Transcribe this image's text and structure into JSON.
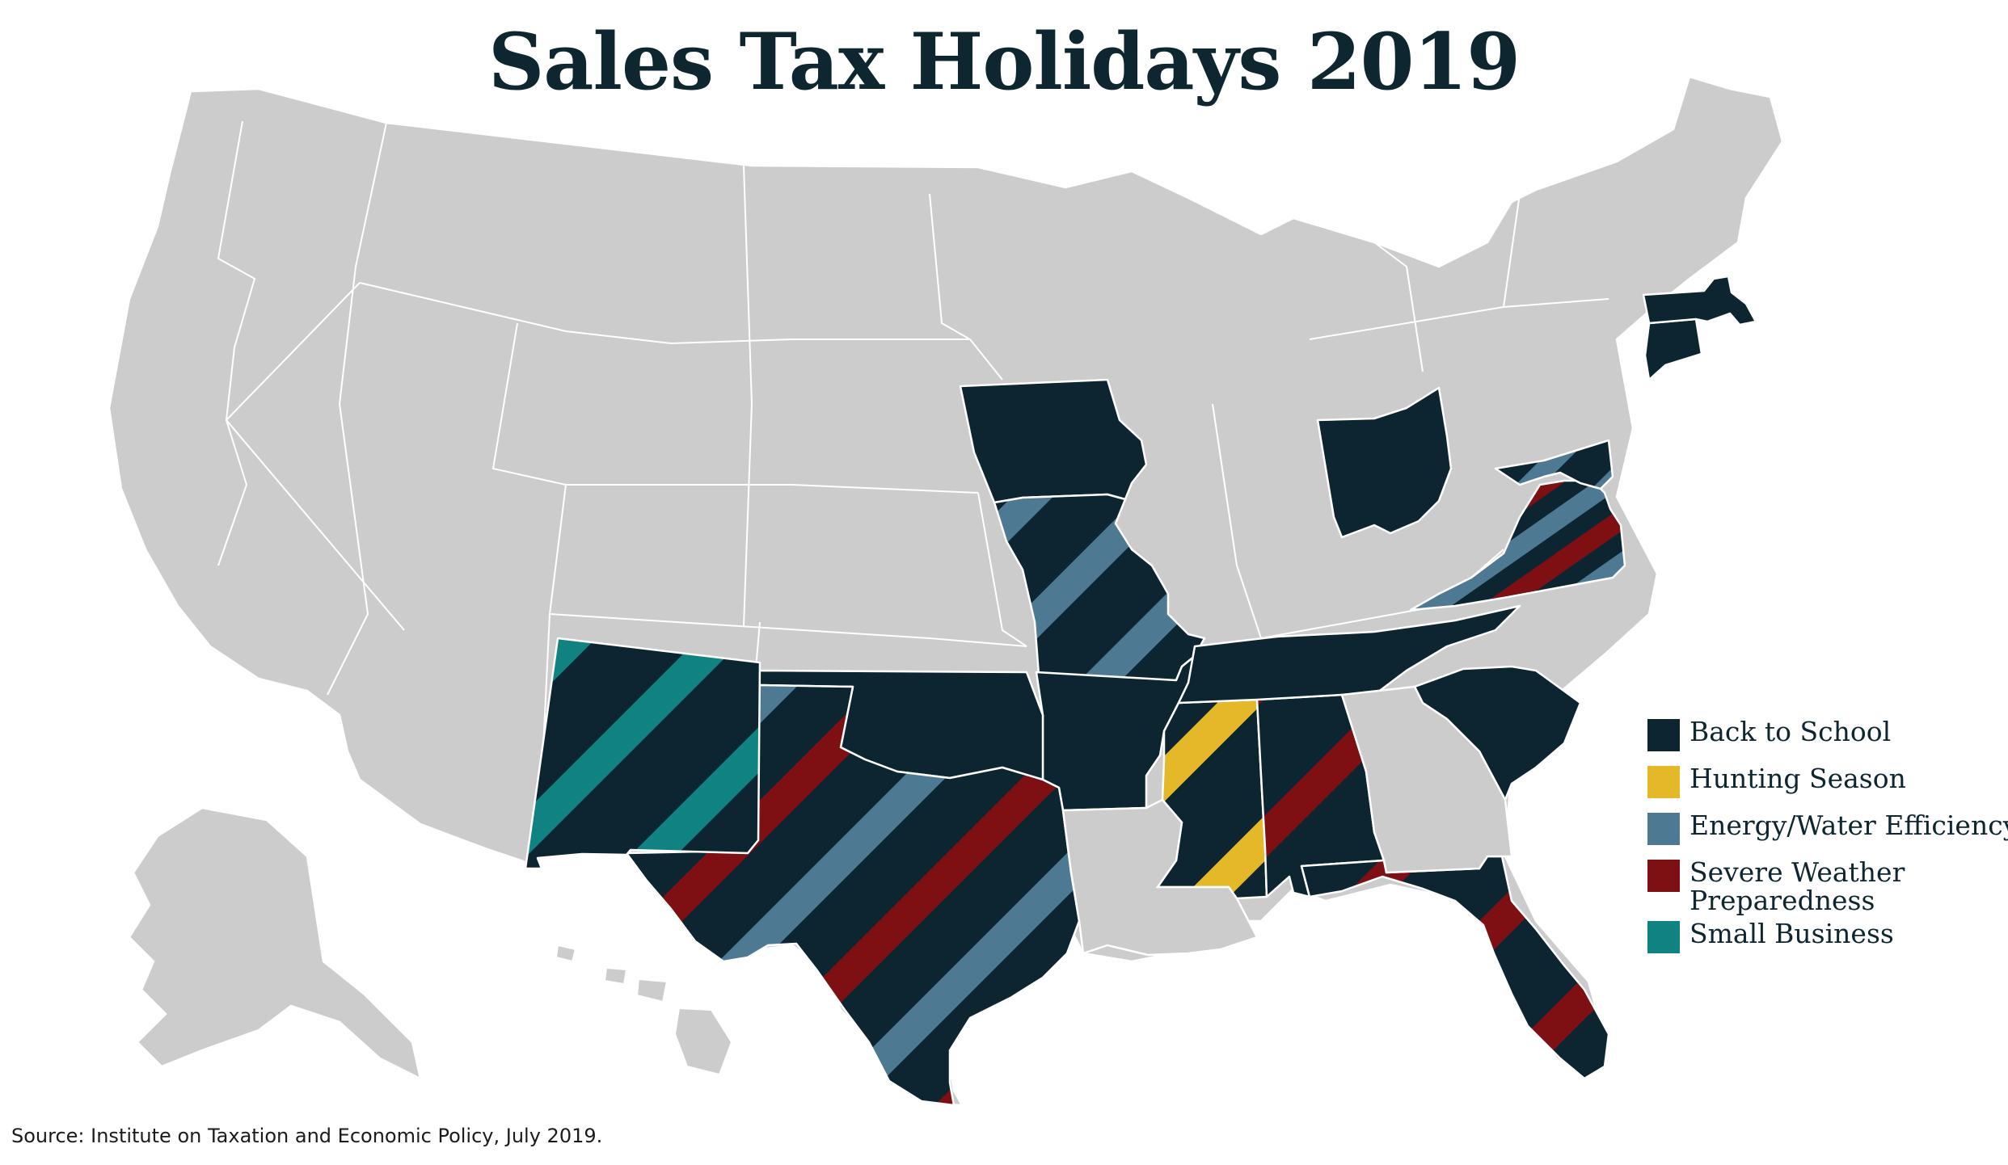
{
  "title": "Sales Tax Holidays 2019",
  "source": "Source: Institute on Taxation and Economic Policy, July 2019.",
  "colors": {
    "background_state": "#cccccc",
    "back_to_school": "#0c2530",
    "hunting_season": "#e5b82a",
    "energy_water_efficiency": "#4d7a92",
    "severe_weather_preparedness": "#7e1014",
    "small_business": "#118282"
  },
  "legend": [
    {
      "label": "Back to School",
      "color": "#0c2530"
    },
    {
      "label": "Hunting Season",
      "color": "#e5b82a"
    },
    {
      "label": "Energy/Water Efficiency",
      "color": "#4d7a92"
    },
    {
      "label": "Severe Weather Preparedness",
      "color": "#7e1014"
    },
    {
      "label": "Small Business",
      "color": "#118282"
    }
  ],
  "states": [
    {
      "name": "Iowa",
      "holidays": [
        "Back to School"
      ]
    },
    {
      "name": "Missouri",
      "holidays": [
        "Back to School",
        "Energy/Water Efficiency"
      ]
    },
    {
      "name": "Ohio",
      "holidays": [
        "Back to School"
      ]
    },
    {
      "name": "Tennessee",
      "holidays": [
        "Back to School"
      ]
    },
    {
      "name": "Arkansas",
      "holidays": [
        "Back to School"
      ]
    },
    {
      "name": "Oklahoma",
      "holidays": [
        "Back to School"
      ]
    },
    {
      "name": "Texas",
      "holidays": [
        "Back to School",
        "Energy/Water Efficiency",
        "Severe Weather Preparedness"
      ]
    },
    {
      "name": "New Mexico",
      "holidays": [
        "Back to School",
        "Small Business"
      ]
    },
    {
      "name": "Mississippi",
      "holidays": [
        "Back to School",
        "Hunting Season"
      ]
    },
    {
      "name": "Alabama",
      "holidays": [
        "Back to School",
        "Severe Weather Preparedness"
      ]
    },
    {
      "name": "Florida",
      "holidays": [
        "Back to School",
        "Severe Weather Preparedness"
      ]
    },
    {
      "name": "South Carolina",
      "holidays": [
        "Back to School"
      ]
    },
    {
      "name": "Virginia",
      "holidays": [
        "Back to School",
        "Energy/Water Efficiency",
        "Severe Weather Preparedness"
      ]
    },
    {
      "name": "Maryland",
      "holidays": [
        "Back to School",
        "Energy/Water Efficiency"
      ]
    },
    {
      "name": "Connecticut",
      "holidays": [
        "Back to School"
      ]
    },
    {
      "name": "Massachusetts",
      "holidays": [
        "Back to School"
      ]
    }
  ]
}
